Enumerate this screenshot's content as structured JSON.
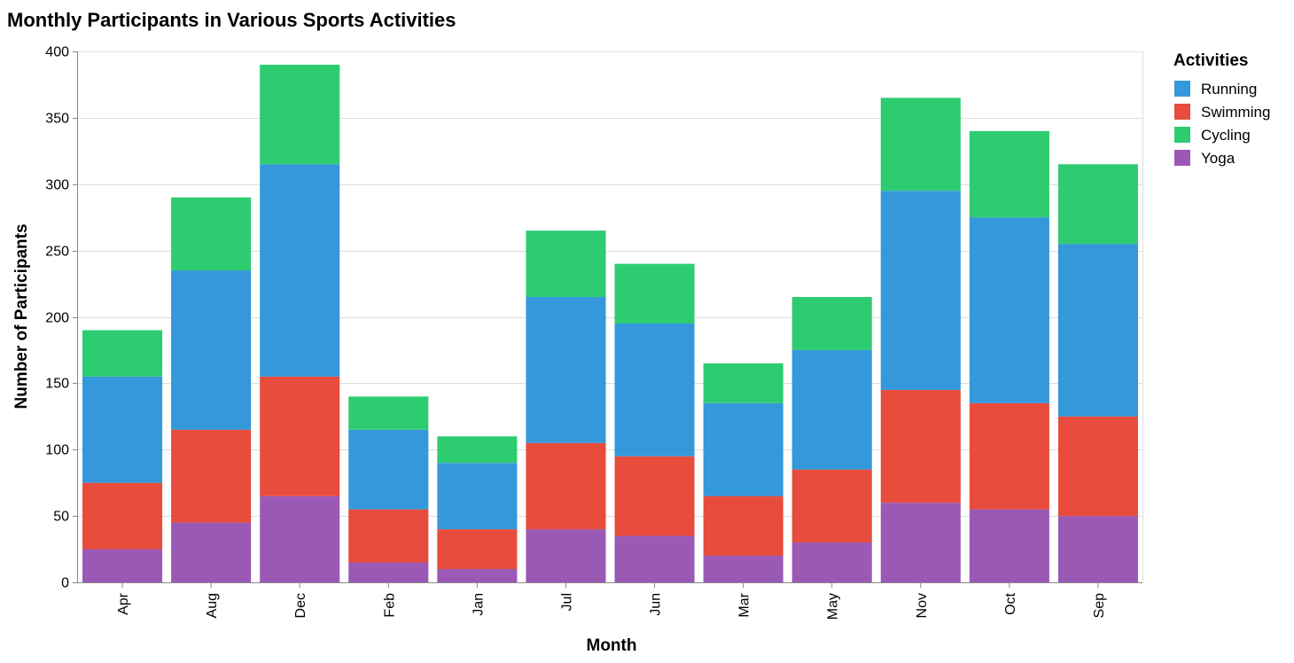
{
  "chart_data": {
    "type": "bar",
    "stacked": true,
    "title": "Monthly Participants in Various Sports Activities",
    "xlabel": "Month",
    "ylabel": "Number of Participants",
    "ylim": [
      0,
      400
    ],
    "yticks": [
      0,
      50,
      100,
      150,
      200,
      250,
      300,
      350,
      400
    ],
    "grid": true,
    "legend": {
      "title": "Activities",
      "placement": "top-right"
    },
    "categories": [
      "Apr",
      "Aug",
      "Dec",
      "Feb",
      "Jan",
      "Jul",
      "Jun",
      "Mar",
      "May",
      "Nov",
      "Oct",
      "Sep"
    ],
    "stack_order": [
      "Yoga",
      "Swimming",
      "Running",
      "Cycling"
    ],
    "series": [
      {
        "name": "Running",
        "color": "#3498db",
        "values": [
          80,
          120,
          160,
          60,
          50,
          110,
          100,
          70,
          90,
          150,
          140,
          130
        ]
      },
      {
        "name": "Swimming",
        "color": "#e74c3c",
        "values": [
          50,
          70,
          90,
          40,
          30,
          65,
          60,
          45,
          55,
          85,
          80,
          75
        ]
      },
      {
        "name": "Cycling",
        "color": "#2ecc71",
        "values": [
          35,
          55,
          75,
          25,
          20,
          50,
          45,
          30,
          40,
          70,
          65,
          60
        ]
      },
      {
        "name": "Yoga",
        "color": "#9b59b6",
        "values": [
          25,
          45,
          65,
          15,
          10,
          40,
          35,
          20,
          30,
          60,
          55,
          50
        ]
      }
    ]
  }
}
